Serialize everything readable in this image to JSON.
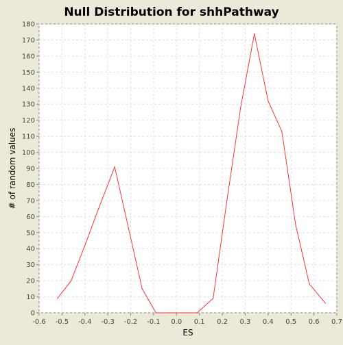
{
  "chart_data": {
    "type": "line",
    "title": "Null Distribution for shhPathway",
    "xlabel": "ES",
    "ylabel": "# of random values",
    "xlim": [
      -0.6,
      0.7
    ],
    "ylim": [
      0,
      180
    ],
    "xticks": [
      -0.6,
      -0.5,
      -0.4,
      -0.3,
      -0.2,
      -0.1,
      0.0,
      0.1,
      0.2,
      0.3,
      0.4,
      0.5,
      0.6,
      0.7
    ],
    "xtick_labels": [
      "-0.6",
      "-0.5",
      "-0.4",
      "-0.3",
      "-0.2",
      "-0.1",
      "0.0",
      "0.1",
      "0.2",
      "0.3",
      "0.4",
      "0.5",
      "0.6",
      "0.7"
    ],
    "yticks": [
      0,
      10,
      20,
      30,
      40,
      50,
      60,
      70,
      80,
      90,
      100,
      110,
      120,
      130,
      140,
      150,
      160,
      170,
      180
    ],
    "ytick_labels": [
      "0",
      "10",
      "20",
      "30",
      "40",
      "50",
      "60",
      "70",
      "80",
      "90",
      "100",
      "110",
      "120",
      "130",
      "140",
      "150",
      "160",
      "170",
      "180"
    ],
    "grid": true,
    "legend": "none",
    "colors": {
      "line": "#ff3333",
      "plot_bg": "#ffffff",
      "page_bg": "#ece9d8",
      "grid": "#e0e0e0",
      "axis": "#888888",
      "text": "#000000"
    },
    "series": [
      {
        "x": [
          -0.52,
          -0.46,
          -0.4,
          -0.34,
          -0.27,
          -0.21,
          -0.15,
          -0.09,
          -0.03,
          0.03,
          0.09,
          0.16,
          0.22,
          0.28,
          0.34,
          0.4,
          0.46,
          0.52,
          0.58,
          0.65
        ],
        "y": [
          9,
          20,
          42,
          65,
          91,
          53,
          15,
          0,
          0,
          0,
          0,
          9,
          70,
          128,
          174,
          132,
          113,
          55,
          18,
          6
        ]
      }
    ]
  }
}
